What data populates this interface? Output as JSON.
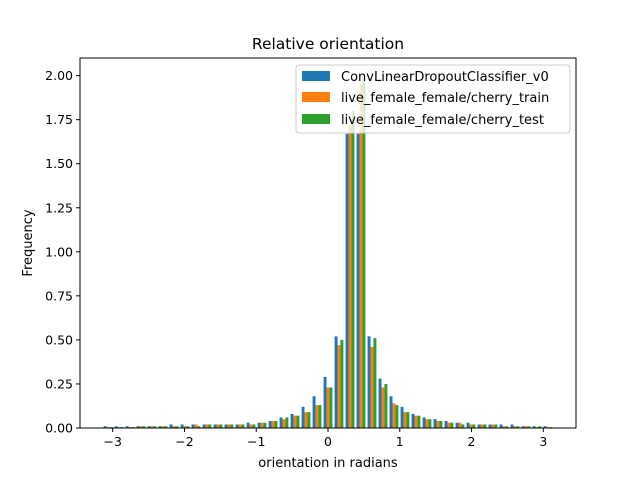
{
  "chart_data": {
    "type": "bar",
    "title": "Relative orientation",
    "xlabel": "orientation in radians",
    "ylabel": "Frequency",
    "xlim": [
      -3.4558,
      3.4558
    ],
    "ylim": [
      0,
      2.1
    ],
    "xticks": [
      -3,
      -2,
      -1,
      0,
      1,
      2,
      3
    ],
    "xtick_labels": [
      "−3",
      "−2",
      "−1",
      "0",
      "1",
      "2",
      "3"
    ],
    "yticks": [
      0,
      0.25,
      0.5,
      0.75,
      1.0,
      1.25,
      1.5,
      1.75,
      2.0
    ],
    "ytick_labels": [
      "0.00",
      "0.25",
      "0.50",
      "0.75",
      "1.00",
      "1.25",
      "1.50",
      "1.75",
      "2.00"
    ],
    "grid": false,
    "legend_position": "top-right",
    "bin_range": [
      -3.14159,
      3.14159
    ],
    "bins": 41,
    "series": [
      {
        "name": "ConvLinearDropoutClassifier_v0",
        "color": "#1f77b4",
        "values": [
          0.01,
          0.01,
          0.01,
          0.01,
          0.01,
          0.01,
          0.02,
          0.02,
          0.02,
          0.02,
          0.02,
          0.02,
          0.02,
          0.03,
          0.03,
          0.04,
          0.06,
          0.08,
          0.12,
          0.18,
          0.29,
          0.52,
          1.67,
          1.67,
          0.52,
          0.28,
          0.18,
          0.12,
          0.08,
          0.06,
          0.05,
          0.04,
          0.03,
          0.03,
          0.02,
          0.02,
          0.02,
          0.02,
          0.01,
          0.01,
          0.01
        ]
      },
      {
        "name": "live_female_female/cherry_train",
        "color": "#ff7f0e",
        "values": [
          0.005,
          0.005,
          0.005,
          0.01,
          0.01,
          0.01,
          0.01,
          0.01,
          0.02,
          0.02,
          0.02,
          0.02,
          0.02,
          0.02,
          0.03,
          0.04,
          0.05,
          0.07,
          0.09,
          0.13,
          0.23,
          0.47,
          1.72,
          1.95,
          0.46,
          0.23,
          0.14,
          0.09,
          0.07,
          0.05,
          0.04,
          0.03,
          0.03,
          0.02,
          0.02,
          0.02,
          0.01,
          0.01,
          0.01,
          0.005,
          0.005
        ]
      },
      {
        "name": "live_female_female/cherry_test",
        "color": "#2ca02c",
        "values": [
          0.005,
          0.005,
          0.005,
          0.01,
          0.01,
          0.01,
          0.01,
          0.01,
          0.01,
          0.02,
          0.02,
          0.02,
          0.02,
          0.02,
          0.03,
          0.04,
          0.06,
          0.07,
          0.09,
          0.13,
          0.23,
          0.5,
          1.8,
          1.98,
          0.51,
          0.25,
          0.13,
          0.09,
          0.07,
          0.05,
          0.04,
          0.03,
          0.02,
          0.02,
          0.02,
          0.02,
          0.01,
          0.01,
          0.01,
          0.01,
          0.005
        ]
      }
    ]
  }
}
